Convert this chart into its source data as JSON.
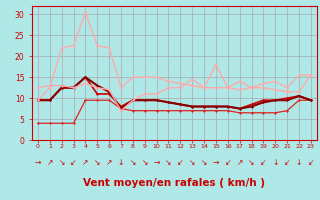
{
  "background_color": "#b0e8e8",
  "grid_color": "#aaaaaa",
  "xlabel": "Vent moyen/en rafales ( km/h )",
  "xlabel_color": "#cc0000",
  "xlabel_fontsize": 7.5,
  "xtick_color": "#cc0000",
  "ytick_color": "#cc0000",
  "ylim": [
    0,
    32
  ],
  "xlim": [
    -0.5,
    23.5
  ],
  "yticks": [
    0,
    5,
    10,
    15,
    20,
    25,
    30
  ],
  "xticks": [
    0,
    1,
    2,
    3,
    4,
    5,
    6,
    7,
    8,
    9,
    10,
    11,
    12,
    13,
    14,
    15,
    16,
    17,
    18,
    19,
    20,
    21,
    22,
    23
  ],
  "series": [
    {
      "y": [
        4.0,
        4.0,
        4.0,
        4.0,
        9.5,
        9.5,
        9.5,
        7.5,
        7.0,
        7.0,
        7.0,
        7.0,
        7.0,
        7.0,
        7.0,
        7.0,
        7.0,
        6.5,
        6.5,
        6.5,
        6.5,
        7.0,
        9.5,
        9.5
      ],
      "color": "#dd2222",
      "lw": 0.9,
      "marker": "D",
      "markersize": 1.5,
      "alpha": 1.0
    },
    {
      "y": [
        9.5,
        9.5,
        12.5,
        12.5,
        15.0,
        11.0,
        11.0,
        8.0,
        9.5,
        9.5,
        9.5,
        9.0,
        8.5,
        8.0,
        8.0,
        8.0,
        8.0,
        7.5,
        8.5,
        9.5,
        9.5,
        10.0,
        10.5,
        9.5
      ],
      "color": "#cc0000",
      "lw": 1.2,
      "marker": "D",
      "markersize": 1.5,
      "alpha": 1.0
    },
    {
      "y": [
        9.5,
        9.5,
        12.5,
        12.5,
        15.0,
        13.0,
        11.5,
        7.5,
        9.5,
        9.5,
        9.5,
        9.0,
        8.5,
        8.0,
        8.0,
        8.0,
        8.0,
        7.5,
        8.0,
        9.0,
        9.5,
        9.5,
        10.5,
        9.5
      ],
      "color": "#880000",
      "lw": 1.5,
      "marker": "D",
      "markersize": 1.5,
      "alpha": 1.0
    },
    {
      "y": [
        12.5,
        13.0,
        13.0,
        12.5,
        13.5,
        12.5,
        12.0,
        7.0,
        9.5,
        11.0,
        11.0,
        12.5,
        12.5,
        14.5,
        12.5,
        18.0,
        12.5,
        14.0,
        12.5,
        12.5,
        12.0,
        11.5,
        11.5,
        15.5
      ],
      "color": "#ffaaaa",
      "lw": 1.0,
      "marker": "D",
      "markersize": 1.5,
      "alpha": 1.0
    },
    {
      "y": [
        9.5,
        12.5,
        22.0,
        22.5,
        30.5,
        22.5,
        22.0,
        12.5,
        15.0,
        15.0,
        15.0,
        14.0,
        13.5,
        13.0,
        12.5,
        12.5,
        12.5,
        12.0,
        12.5,
        13.5,
        14.0,
        12.5,
        15.5,
        15.5
      ],
      "color": "#ffaaaa",
      "lw": 1.0,
      "marker": "D",
      "markersize": 1.5,
      "alpha": 1.0
    }
  ],
  "wind_arrows": [
    "→",
    "↗",
    "↘",
    "↙",
    "↗",
    "↘",
    "↗",
    "↓",
    "↘",
    "↘",
    "→",
    "↘",
    "↙",
    "↘",
    "↘",
    "→",
    "↙",
    "↗",
    "↘",
    "↙",
    "↓",
    "↙",
    "↓",
    "↙"
  ],
  "arrow_color": "#cc0000",
  "arrow_fontsize": 5.5
}
